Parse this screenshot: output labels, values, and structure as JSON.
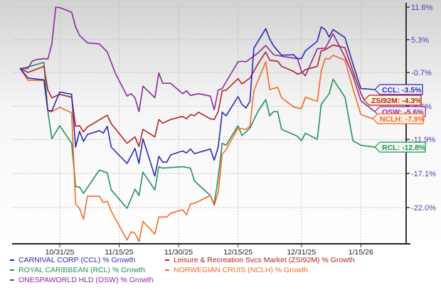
{
  "chart_data": {
    "type": "line",
    "title": "",
    "xlabel": "",
    "ylabel": "",
    "y_scale": "log-growth",
    "ylim": [
      -26.9,
      11.6
    ],
    "xlim": [
      "2025-10-19",
      "2026-01-26"
    ],
    "grid": true,
    "legend_position": "bottom",
    "x_ticks": [
      {
        "date": "2025-10-31",
        "label": "10/31/25"
      },
      {
        "date": "2025-11-15",
        "label": "11/15/25"
      },
      {
        "date": "2025-11-30",
        "label": "11/30/25"
      },
      {
        "date": "2025-12-15",
        "label": "12/15/25"
      },
      {
        "date": "2025-12-31",
        "label": "12/31/25"
      },
      {
        "date": "2026-01-15",
        "label": "1/15/26"
      }
    ],
    "y_ticks": [
      {
        "value": 11.6,
        "label": "11.6%"
      },
      {
        "value": 5.3,
        "label": "5.3%"
      },
      {
        "value": -0.7,
        "label": "-0.7%"
      },
      {
        "value": -6.5,
        "label": "-6.5%"
      },
      {
        "value": -11.9,
        "label": "-11.9%"
      },
      {
        "value": -17.1,
        "label": "-17.1%"
      },
      {
        "value": -22.0,
        "label": "-22.0%"
      }
    ],
    "series": [
      {
        "name": "CARNIVAL CORP (CCL) % Growth",
        "ticker": "CCL",
        "end_label": "CCL: -3.5%",
        "color": "#2a2ab8",
        "tag_fill": "#eeeefb",
        "points": [
          [
            "2025-10-21",
            0
          ],
          [
            "2025-10-23",
            -1.7
          ],
          [
            "2025-10-27",
            -2.0
          ],
          [
            "2025-10-28",
            -7.2
          ],
          [
            "2025-10-29",
            -7.3
          ],
          [
            "2025-10-31",
            -4.1
          ],
          [
            "2025-11-03",
            -4.5
          ],
          [
            "2025-11-04",
            -13.1
          ],
          [
            "2025-11-05",
            -10.6
          ],
          [
            "2025-11-06",
            -12.2
          ],
          [
            "2025-11-07",
            -11.1
          ],
          [
            "2025-11-10",
            -10.5
          ],
          [
            "2025-11-11",
            -10.9
          ],
          [
            "2025-11-12",
            -9.8
          ],
          [
            "2025-11-13",
            -13.1
          ],
          [
            "2025-11-17",
            -15.6
          ],
          [
            "2025-11-19",
            -13.3
          ],
          [
            "2025-11-20",
            -15.6
          ],
          [
            "2025-11-21",
            -11.8
          ],
          [
            "2025-11-24",
            -17.5
          ],
          [
            "2025-11-25",
            -14.5
          ],
          [
            "2025-11-26",
            -15.4
          ],
          [
            "2025-11-27",
            -15.4
          ],
          [
            "2025-11-28",
            -14.3
          ],
          [
            "2025-12-01",
            -13.7
          ],
          [
            "2025-12-02",
            -14.0
          ],
          [
            "2025-12-03",
            -13.4
          ],
          [
            "2025-12-04",
            -14.1
          ],
          [
            "2025-12-08",
            -13.4
          ],
          [
            "2025-12-09",
            -15.1
          ],
          [
            "2025-12-10",
            -13.1
          ],
          [
            "2025-12-11",
            -7.5
          ],
          [
            "2025-12-12",
            -8.1
          ],
          [
            "2025-12-15",
            -4.9
          ],
          [
            "2025-12-16",
            -6.2
          ],
          [
            "2025-12-17",
            -6.8
          ],
          [
            "2025-12-18",
            -5.7
          ],
          [
            "2025-12-19",
            3.7
          ],
          [
            "2025-12-22",
            7.4
          ],
          [
            "2025-12-23",
            5.4
          ],
          [
            "2025-12-24",
            4.1
          ],
          [
            "2025-12-26",
            2.4
          ],
          [
            "2025-12-29",
            2.5
          ],
          [
            "2025-12-30",
            1.8
          ],
          [
            "2025-12-31",
            1.8
          ],
          [
            "2026-01-01",
            3.2
          ],
          [
            "2026-01-04",
            5.0
          ],
          [
            "2026-01-05",
            7.7
          ],
          [
            "2026-01-06",
            7.2
          ],
          [
            "2026-01-07",
            5.8
          ],
          [
            "2026-01-08",
            7.2
          ],
          [
            "2026-01-11",
            5.7
          ],
          [
            "2026-01-13",
            0.8
          ],
          [
            "2026-01-15",
            -3.5
          ]
        ]
      },
      {
        "name": "Leisure & Recreation Svcs Market (ZSI92M) % Growth",
        "ticker": "ZSI92M",
        "end_label": "ZSI92M: -4.3%",
        "color": "#b22222",
        "tag_fill": "#fdf3dc",
        "points": [
          [
            "2025-10-21",
            0
          ],
          [
            "2025-10-23",
            -0.7
          ],
          [
            "2025-10-27",
            0.4
          ],
          [
            "2025-10-28",
            -3.8
          ],
          [
            "2025-10-29",
            -5.1
          ],
          [
            "2025-10-31",
            -4.5
          ],
          [
            "2025-11-03",
            -5.0
          ],
          [
            "2025-11-04",
            -9.8
          ],
          [
            "2025-11-05",
            -9.7
          ],
          [
            "2025-11-06",
            -10.7
          ],
          [
            "2025-11-07",
            -9.9
          ],
          [
            "2025-11-12",
            -8.0
          ],
          [
            "2025-11-13",
            -9.4
          ],
          [
            "2025-11-17",
            -12.5
          ],
          [
            "2025-11-19",
            -11.5
          ],
          [
            "2025-11-20",
            -13.0
          ],
          [
            "2025-11-21",
            -10.3
          ],
          [
            "2025-11-24",
            -11.5
          ],
          [
            "2025-11-25",
            -8.7
          ],
          [
            "2025-11-26",
            -9.3
          ],
          [
            "2025-11-28",
            -8.7
          ],
          [
            "2025-12-01",
            -8.2
          ],
          [
            "2025-12-02",
            -8.6
          ],
          [
            "2025-12-03",
            -7.9
          ],
          [
            "2025-12-04",
            -8.1
          ],
          [
            "2025-12-05",
            -7.5
          ],
          [
            "2025-12-08",
            -8.6
          ],
          [
            "2025-12-09",
            -8.7
          ],
          [
            "2025-12-10",
            -7.4
          ],
          [
            "2025-12-11",
            -3.9
          ],
          [
            "2025-12-12",
            -3.8
          ],
          [
            "2025-12-15",
            -1.8
          ],
          [
            "2025-12-16",
            -2.7
          ],
          [
            "2025-12-18",
            -1.7
          ],
          [
            "2025-12-20",
            0.8
          ],
          [
            "2025-12-22",
            3.0
          ],
          [
            "2025-12-23",
            1.5
          ],
          [
            "2025-12-25",
            1.3
          ],
          [
            "2025-12-26",
            0.4
          ],
          [
            "2025-12-29",
            -0.5
          ],
          [
            "2025-12-30",
            -1.0
          ],
          [
            "2025-12-31",
            -0.8
          ],
          [
            "2026-01-01",
            -0.2
          ],
          [
            "2026-01-04",
            0.4
          ],
          [
            "2026-01-05",
            3.2
          ],
          [
            "2026-01-06",
            3.4
          ],
          [
            "2026-01-08",
            4.3
          ],
          [
            "2026-01-11",
            3.8
          ],
          [
            "2026-01-13",
            -0.5
          ],
          [
            "2026-01-15",
            -4.3
          ]
        ]
      },
      {
        "name": "ROYAL CARIBBEAN (RCL) % Growth",
        "ticker": "RCL",
        "end_label": "RCL: -12.8%",
        "color": "#22915a",
        "tag_fill": "#eef8ee",
        "points": [
          [
            "2025-10-21",
            0
          ],
          [
            "2025-10-22",
            0.1
          ],
          [
            "2025-10-27",
            1.1
          ],
          [
            "2025-10-28",
            -7.4
          ],
          [
            "2025-10-29",
            -11.8
          ],
          [
            "2025-10-31",
            -9.7
          ],
          [
            "2025-11-03",
            -12.5
          ],
          [
            "2025-11-04",
            -19.0
          ],
          [
            "2025-11-05",
            -19.1
          ],
          [
            "2025-11-06",
            -20.0
          ],
          [
            "2025-11-10",
            -16.6
          ],
          [
            "2025-11-12",
            -17.0
          ],
          [
            "2025-11-13",
            -19.5
          ],
          [
            "2025-11-17",
            -22.1
          ],
          [
            "2025-11-19",
            -19.4
          ],
          [
            "2025-11-20",
            -20.3
          ],
          [
            "2025-11-21",
            -16.9
          ],
          [
            "2025-11-24",
            -19.5
          ],
          [
            "2025-11-25",
            -16.1
          ],
          [
            "2025-11-26",
            -16.3
          ],
          [
            "2025-12-01",
            -16.1
          ],
          [
            "2025-12-03",
            -16.3
          ],
          [
            "2025-12-04",
            -18.2
          ],
          [
            "2025-12-08",
            -20.3
          ],
          [
            "2025-12-09",
            -21.5
          ],
          [
            "2025-12-10",
            -17.7
          ],
          [
            "2025-12-11",
            -12.5
          ],
          [
            "2025-12-12",
            -12.8
          ],
          [
            "2025-12-15",
            -9.7
          ],
          [
            "2025-12-16",
            -11.3
          ],
          [
            "2025-12-18",
            -10.1
          ],
          [
            "2025-12-20",
            -7.4
          ],
          [
            "2025-12-22",
            -5.4
          ],
          [
            "2025-12-23",
            -8.1
          ],
          [
            "2025-12-24",
            -7.4
          ],
          [
            "2025-12-25",
            -7.4
          ],
          [
            "2025-12-26",
            -10.3
          ],
          [
            "2025-12-30",
            -11.4
          ],
          [
            "2025-12-31",
            -12.1
          ],
          [
            "2026-01-01",
            -10.9
          ],
          [
            "2026-01-04",
            -11.9
          ],
          [
            "2026-01-05",
            -6.2
          ],
          [
            "2026-01-07",
            -4.4
          ],
          [
            "2026-01-08",
            -1.9
          ],
          [
            "2026-01-11",
            -5.0
          ],
          [
            "2026-01-13",
            -12.1
          ],
          [
            "2026-01-15",
            -12.8
          ]
        ]
      },
      {
        "name": "NORWEGIAN CRUIS (NCLH) % Growth",
        "ticker": "NCLH",
        "end_label": "NCLH: -7.9%",
        "color": "#f26b21",
        "tag_fill": "#fdf0e6",
        "points": [
          [
            "2025-10-21",
            0
          ],
          [
            "2025-10-23",
            -2.1
          ],
          [
            "2025-10-27",
            -2.1
          ],
          [
            "2025-10-28",
            -7.4
          ],
          [
            "2025-10-29",
            -7.4
          ],
          [
            "2025-10-31",
            -6.7
          ],
          [
            "2025-11-03",
            -7.6
          ],
          [
            "2025-11-04",
            -21.5
          ],
          [
            "2025-11-05",
            -22.1
          ],
          [
            "2025-11-06",
            -23.6
          ],
          [
            "2025-11-07",
            -20.4
          ],
          [
            "2025-11-10",
            -20.4
          ],
          [
            "2025-11-11",
            -21.3
          ],
          [
            "2025-11-12",
            -21.1
          ],
          [
            "2025-11-13",
            -22.5
          ],
          [
            "2025-11-17",
            -26.4
          ],
          [
            "2025-11-18",
            -25.3
          ],
          [
            "2025-11-19",
            -25.5
          ],
          [
            "2025-11-20",
            -26.6
          ],
          [
            "2025-11-21",
            -23.9
          ],
          [
            "2025-11-24",
            -25.6
          ],
          [
            "2025-11-25",
            -23.3
          ],
          [
            "2025-11-27",
            -23.3
          ],
          [
            "2025-11-28",
            -22.8
          ],
          [
            "2025-12-01",
            -22.3
          ],
          [
            "2025-12-02",
            -23.0
          ],
          [
            "2025-12-03",
            -21.5
          ],
          [
            "2025-12-04",
            -21.4
          ],
          [
            "2025-12-08",
            -20.3
          ],
          [
            "2025-12-09",
            -21.7
          ],
          [
            "2025-12-10",
            -19.8
          ],
          [
            "2025-12-11",
            -14.2
          ],
          [
            "2025-12-12",
            -13.5
          ],
          [
            "2025-12-15",
            -10.1
          ],
          [
            "2025-12-17",
            -10.3
          ],
          [
            "2025-12-18",
            -9.8
          ],
          [
            "2025-12-19",
            -3.9
          ],
          [
            "2025-12-22",
            1.2
          ],
          [
            "2025-12-23",
            -3.7
          ],
          [
            "2025-12-25",
            -3.3
          ],
          [
            "2025-12-26",
            -5.1
          ],
          [
            "2025-12-29",
            -6.6
          ],
          [
            "2025-12-30",
            -6.8
          ],
          [
            "2025-12-31",
            -6.9
          ],
          [
            "2026-01-01",
            -5.0
          ],
          [
            "2026-01-04",
            -5.7
          ],
          [
            "2026-01-05",
            -0.5
          ],
          [
            "2026-01-06",
            1.8
          ],
          [
            "2026-01-07",
            1.7
          ],
          [
            "2026-01-08",
            2.4
          ],
          [
            "2026-01-11",
            1.5
          ],
          [
            "2026-01-13",
            -3.5
          ],
          [
            "2026-01-15",
            -7.9
          ]
        ]
      },
      {
        "name": "ONESPAWORLD HLD (OSW) % Growth",
        "ticker": "OSW",
        "end_label": "OSW: -5.6%",
        "color": "#8b2a9e",
        "tag_fill": "#f7eef9",
        "points": [
          [
            "2025-10-21",
            0
          ],
          [
            "2025-10-23",
            0
          ],
          [
            "2025-10-24",
            1.3
          ],
          [
            "2025-10-25",
            1.6
          ],
          [
            "2025-10-27",
            1.8
          ],
          [
            "2025-10-28",
            1.7
          ],
          [
            "2025-10-29",
            4.5
          ],
          [
            "2025-10-30",
            11.6
          ],
          [
            "2025-10-31",
            11.5
          ],
          [
            "2025-11-03",
            10.6
          ],
          [
            "2025-11-04",
            7.7
          ],
          [
            "2025-11-05",
            6.1
          ],
          [
            "2025-11-07",
            4.7
          ],
          [
            "2025-11-10",
            4.5
          ],
          [
            "2025-11-12",
            3.0
          ],
          [
            "2025-11-14",
            -0.8
          ],
          [
            "2025-11-17",
            -4.8
          ],
          [
            "2025-11-18",
            -4.4
          ],
          [
            "2025-11-19",
            -5.1
          ],
          [
            "2025-11-20",
            -7.4
          ],
          [
            "2025-11-21",
            -3.1
          ],
          [
            "2025-11-24",
            -5.1
          ],
          [
            "2025-11-25",
            -0.8
          ],
          [
            "2025-11-26",
            -2.6
          ],
          [
            "2025-11-28",
            -2.6
          ],
          [
            "2025-12-01",
            -4.4
          ],
          [
            "2025-12-02",
            -3.9
          ],
          [
            "2025-12-03",
            -4.7
          ],
          [
            "2025-12-05",
            -4.4
          ],
          [
            "2025-12-08",
            -4.8
          ],
          [
            "2025-12-09",
            -7.1
          ],
          [
            "2025-12-10",
            -3.8
          ],
          [
            "2025-12-11",
            -3.5
          ],
          [
            "2025-12-15",
            1.2
          ],
          [
            "2025-12-16",
            1.3
          ],
          [
            "2025-12-17",
            1.2
          ],
          [
            "2025-12-20",
            2.8
          ],
          [
            "2025-12-22",
            4.2
          ],
          [
            "2025-12-24",
            2.5
          ],
          [
            "2025-12-27",
            2.1
          ],
          [
            "2025-12-30",
            1.8
          ],
          [
            "2025-12-31",
            -0.5
          ],
          [
            "2026-01-01",
            -1.3
          ],
          [
            "2026-01-04",
            3.6
          ],
          [
            "2026-01-06",
            3.7
          ],
          [
            "2026-01-08",
            6.4
          ],
          [
            "2026-01-11",
            2.1
          ],
          [
            "2026-01-13",
            -1.3
          ],
          [
            "2026-01-15",
            -5.6
          ]
        ]
      }
    ],
    "legend_order": [
      0,
      2,
      4,
      1,
      3
    ]
  }
}
